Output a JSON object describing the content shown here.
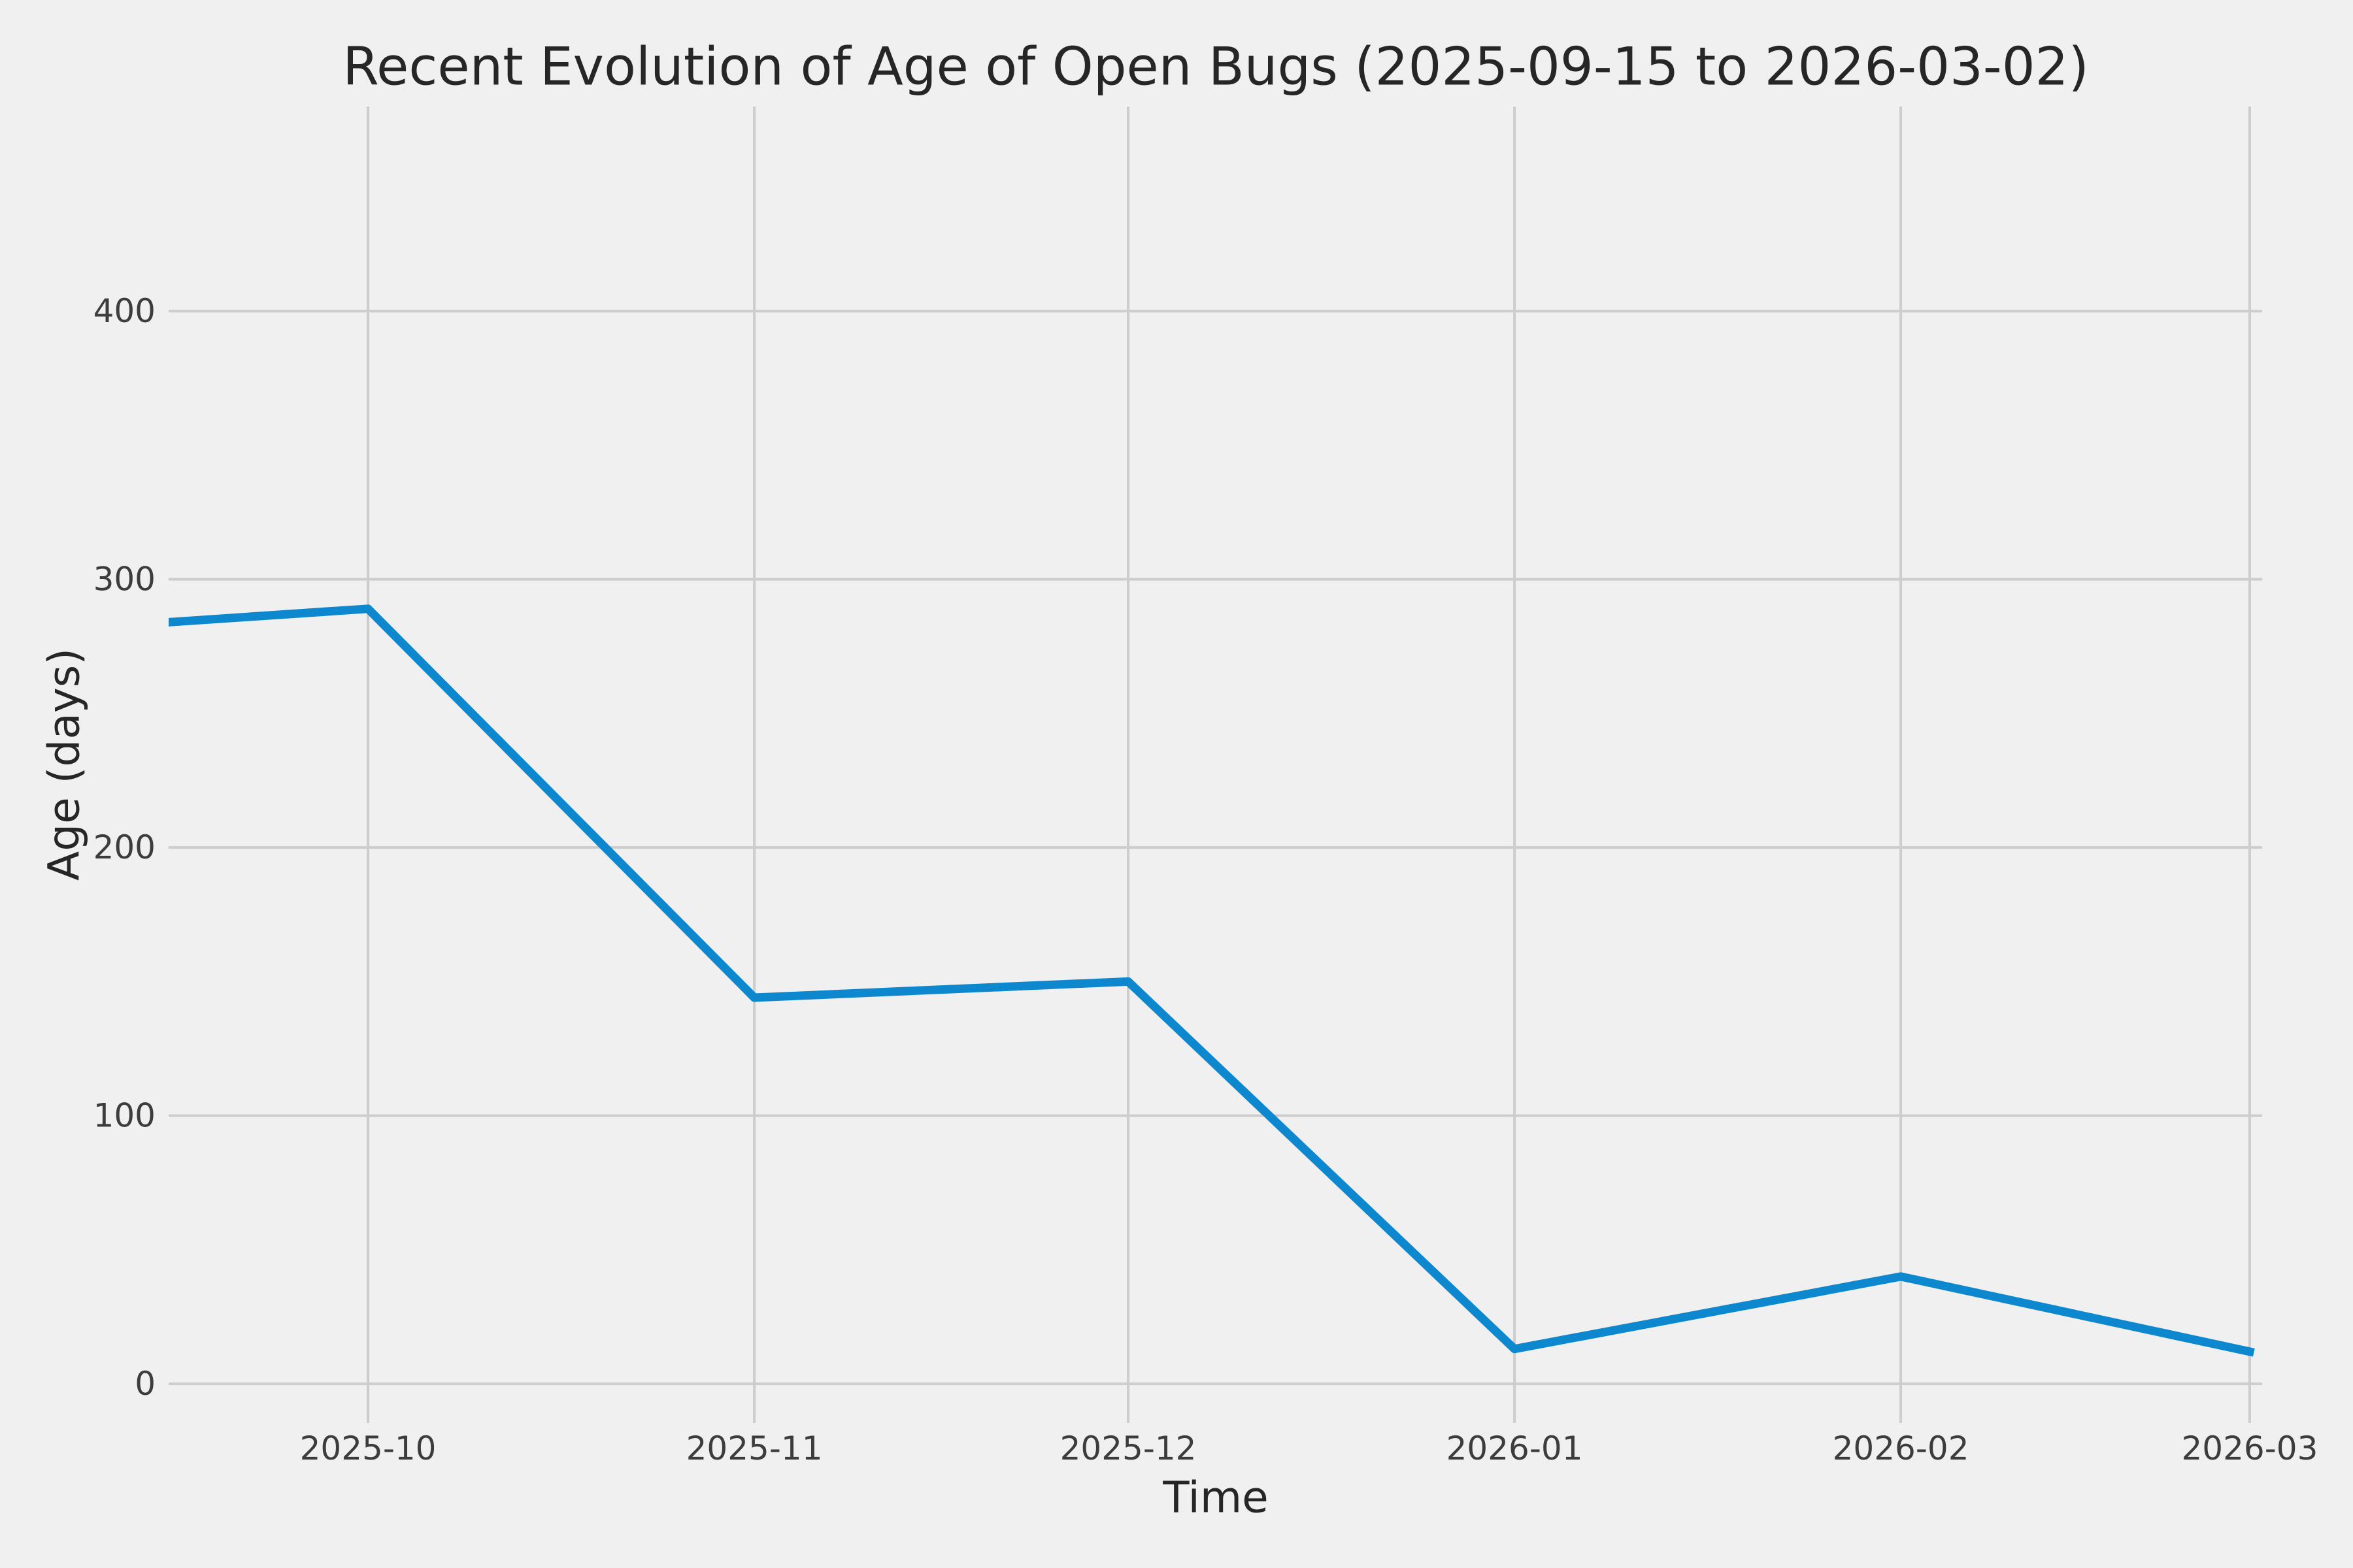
{
  "chart_data": {
    "type": "line",
    "title": "Recent Evolution of Age of Open Bugs (2025-09-15 to 2026-03-02)",
    "xlabel": "Time",
    "ylabel": "Age (days)",
    "x_dates": [
      "2025-09-15",
      "2025-10-01",
      "2025-11-01",
      "2025-12-01",
      "2026-01-01",
      "2026-02-01",
      "2026-03-01"
    ],
    "x_days": [
      0,
      16,
      47,
      77,
      108,
      139,
      167
    ],
    "values": [
      284,
      289,
      144,
      150,
      13,
      40,
      12
    ],
    "xtick_days": [
      16,
      47,
      77,
      108,
      139,
      167
    ],
    "xtick_labels": [
      "2025-10",
      "2025-11",
      "2025-12",
      "2026-01",
      "2026-02",
      "2026-03"
    ],
    "ytick_values": [
      0,
      100,
      200,
      300,
      400
    ],
    "ytick_labels": [
      "0",
      "100",
      "200",
      "300",
      "400"
    ],
    "xlim_days": [
      0,
      168
    ],
    "ylim": [
      -14.6,
      476.3
    ],
    "grid": true,
    "legend_position": "none",
    "colors": {
      "line": "#0d87ce",
      "grid": "#cdcdcd",
      "background": "#f0f0f0",
      "text": "#262626",
      "tick_text": "#3c3c3c"
    }
  }
}
